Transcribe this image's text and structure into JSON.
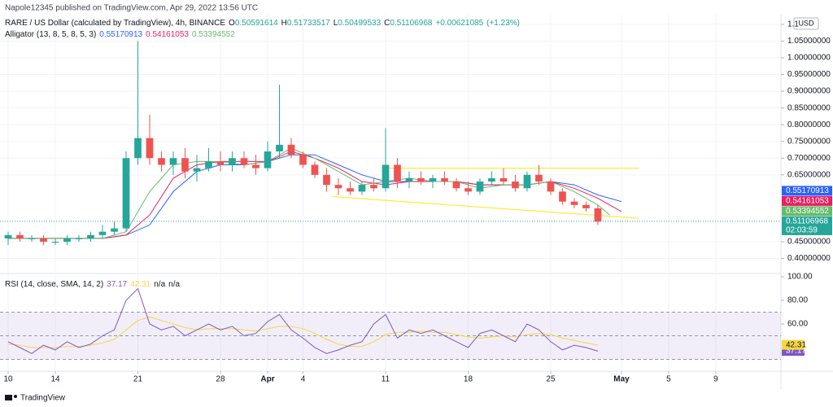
{
  "header": {
    "text": "Napole12345 published on TradingView.com, Apr 29, 2022 13:56 UTC"
  },
  "footer": {
    "text": "TradingView"
  },
  "chart_data": [
    {
      "type": "candlestick",
      "title": "RARE / US Dollar (calculated by TradingView), 4h, BINANCE",
      "ohlc_legend": [
        {
          "label": "O",
          "value": 0.50591614
        },
        {
          "label": "H",
          "value": 0.51733517
        },
        {
          "label": "L",
          "value": 0.50499533
        },
        {
          "label": "C",
          "value": 0.51106968
        }
      ],
      "change": "+0.00621085",
      "change_pct": "(+1.23%)",
      "currency": "USD",
      "grid": true,
      "up_color": "#26a69a",
      "down_color": "#ef5350",
      "x": [
        0,
        1,
        2,
        3,
        4,
        5,
        6,
        7,
        8,
        9,
        10,
        11,
        12,
        13,
        14,
        15,
        16,
        17,
        18,
        19,
        20,
        21,
        22,
        23,
        24,
        25,
        26,
        27,
        28,
        29,
        30,
        31,
        32,
        33,
        34,
        35,
        36,
        37,
        38,
        39,
        40,
        41,
        42,
        43,
        44,
        45,
        46,
        47,
        48,
        49,
        50
      ],
      "open": [
        0.46,
        0.47,
        0.46,
        0.46,
        0.45,
        0.45,
        0.46,
        0.46,
        0.47,
        0.48,
        0.49,
        0.7,
        0.76,
        0.7,
        0.68,
        0.7,
        0.66,
        0.67,
        0.69,
        0.68,
        0.7,
        0.68,
        0.67,
        0.72,
        0.74,
        0.71,
        0.68,
        0.65,
        0.62,
        0.61,
        0.6,
        0.62,
        0.61,
        0.68,
        0.63,
        0.64,
        0.63,
        0.64,
        0.63,
        0.61,
        0.6,
        0.63,
        0.64,
        0.63,
        0.61,
        0.65,
        0.63,
        0.6,
        0.57,
        0.56,
        0.55
      ],
      "high": [
        0.48,
        0.48,
        0.47,
        0.47,
        0.46,
        0.47,
        0.47,
        0.48,
        0.5,
        0.51,
        0.72,
        1.05,
        0.83,
        0.72,
        0.72,
        0.73,
        0.71,
        0.73,
        0.72,
        0.72,
        0.72,
        0.71,
        0.75,
        0.92,
        0.76,
        0.72,
        0.69,
        0.67,
        0.64,
        0.63,
        0.63,
        0.64,
        0.79,
        0.7,
        0.66,
        0.66,
        0.65,
        0.66,
        0.64,
        0.63,
        0.64,
        0.66,
        0.67,
        0.65,
        0.66,
        0.68,
        0.64,
        0.61,
        0.58,
        0.57,
        0.56
      ],
      "low": [
        0.44,
        0.45,
        0.45,
        0.44,
        0.44,
        0.44,
        0.45,
        0.45,
        0.46,
        0.47,
        0.48,
        0.68,
        0.68,
        0.66,
        0.65,
        0.64,
        0.63,
        0.66,
        0.66,
        0.66,
        0.67,
        0.65,
        0.66,
        0.7,
        0.7,
        0.67,
        0.64,
        0.6,
        0.59,
        0.59,
        0.59,
        0.6,
        0.6,
        0.61,
        0.61,
        0.62,
        0.61,
        0.62,
        0.6,
        0.59,
        0.59,
        0.62,
        0.62,
        0.6,
        0.6,
        0.62,
        0.59,
        0.56,
        0.55,
        0.54,
        0.5
      ],
      "close": [
        0.47,
        0.46,
        0.46,
        0.45,
        0.45,
        0.46,
        0.46,
        0.47,
        0.48,
        0.49,
        0.7,
        0.76,
        0.7,
        0.68,
        0.7,
        0.66,
        0.67,
        0.69,
        0.68,
        0.7,
        0.68,
        0.67,
        0.72,
        0.74,
        0.71,
        0.68,
        0.65,
        0.62,
        0.61,
        0.6,
        0.62,
        0.61,
        0.68,
        0.63,
        0.64,
        0.63,
        0.64,
        0.63,
        0.61,
        0.6,
        0.63,
        0.64,
        0.63,
        0.61,
        0.65,
        0.63,
        0.6,
        0.57,
        0.56,
        0.55,
        0.51
      ],
      "xlim": [
        -0.69,
        65.52
      ],
      "xticks": [
        {
          "value": 0,
          "label": "10"
        },
        {
          "value": 4,
          "label": "14"
        },
        {
          "value": 11,
          "label": "21"
        },
        {
          "value": 18,
          "label": "28"
        },
        {
          "value": 22,
          "label": "Apr"
        },
        {
          "value": 25,
          "label": "4"
        },
        {
          "value": 32,
          "label": "11"
        },
        {
          "value": 39,
          "label": "18"
        },
        {
          "value": 46,
          "label": "25"
        },
        {
          "value": 52,
          "label": "May"
        },
        {
          "value": 56,
          "label": "5"
        },
        {
          "value": 60,
          "label": "9"
        }
      ],
      "ylim": [
        0.3575,
        1.129
      ],
      "yticks": [
        {
          "value": 1.1,
          "label": "1.1"
        },
        {
          "value": 1.05,
          "label": "1.05000000"
        },
        {
          "value": 1.0,
          "label": "1.00000000"
        },
        {
          "value": 0.95,
          "label": "0.95000000"
        },
        {
          "value": 0.9,
          "label": "0.90000000"
        },
        {
          "value": 0.85,
          "label": "0.85000000"
        },
        {
          "value": 0.8,
          "label": "0.80000000"
        },
        {
          "value": 0.75,
          "label": "0.75000000"
        },
        {
          "value": 0.7,
          "label": "0.70000000"
        },
        {
          "value": 0.65,
          "label": "0.65000000"
        },
        {
          "value": 0.45,
          "label": "0.45000000"
        },
        {
          "value": 0.4,
          "label": "0.40000000"
        }
      ],
      "indicator": {
        "title": "Alligator (13, 8, 5, 8, 5, 3)",
        "series": [
          {
            "color": "#2962ff",
            "last": 0.55170913,
            "x": [
              0,
              2,
              4,
              6,
              8,
              10,
              12,
              14,
              16,
              18,
              20,
              22,
              24,
              26,
              28,
              30,
              32,
              34,
              36,
              38,
              40,
              42,
              44,
              46,
              48,
              50,
              52
            ],
            "values": [
              0.46,
              0.46,
              0.46,
              0.46,
              0.46,
              0.47,
              0.5,
              0.6,
              0.66,
              0.68,
              0.68,
              0.69,
              0.71,
              0.71,
              0.68,
              0.65,
              0.63,
              0.63,
              0.63,
              0.63,
              0.62,
              0.62,
              0.62,
              0.63,
              0.62,
              0.59,
              0.57
            ]
          },
          {
            "color": "#e91e63",
            "last": 0.54161053,
            "x": [
              0,
              2,
              4,
              6,
              8,
              10,
              12,
              14,
              16,
              18,
              20,
              22,
              24,
              26,
              28,
              30,
              32,
              34,
              36,
              38,
              40,
              42,
              44,
              46,
              48,
              50,
              52
            ],
            "values": [
              0.46,
              0.46,
              0.46,
              0.46,
              0.46,
              0.47,
              0.53,
              0.64,
              0.68,
              0.69,
              0.69,
              0.69,
              0.72,
              0.7,
              0.67,
              0.63,
              0.62,
              0.63,
              0.63,
              0.63,
              0.62,
              0.62,
              0.62,
              0.63,
              0.61,
              0.58,
              0.54
            ]
          },
          {
            "color": "#66bb6a",
            "last": 0.53394552,
            "x": [
              0,
              2,
              4,
              6,
              8,
              10,
              12,
              14,
              16,
              18,
              20,
              22,
              24,
              26,
              28,
              30,
              32,
              34,
              36,
              38,
              40,
              42,
              44,
              46,
              48,
              50,
              51
            ],
            "values": [
              0.46,
              0.46,
              0.46,
              0.46,
              0.46,
              0.48,
              0.6,
              0.68,
              0.69,
              0.69,
              0.68,
              0.69,
              0.73,
              0.7,
              0.66,
              0.62,
              0.63,
              0.64,
              0.63,
              0.63,
              0.61,
              0.62,
              0.62,
              0.63,
              0.6,
              0.56,
              0.53
            ]
          }
        ]
      },
      "trendlines": {
        "color": "#ffeb3b",
        "lines": [
          {
            "x": [
              32,
              53.5
            ],
            "values": [
              0.67,
              0.67
            ]
          },
          {
            "x": [
              27.5,
              53.5
            ],
            "values": [
              0.585,
              0.52
            ]
          }
        ]
      },
      "last_price": 0.51106968,
      "countdown": "02:03:59"
    },
    {
      "type": "line",
      "title": "RSI (14, close, SMA, 14, 2)",
      "extra_legend": [
        "n/a",
        "n/a"
      ],
      "x": [
        0,
        1,
        2,
        3,
        4,
        5,
        6,
        7,
        8,
        9,
        10,
        11,
        12,
        13,
        14,
        15,
        16,
        17,
        18,
        19,
        20,
        21,
        22,
        23,
        24,
        25,
        26,
        27,
        28,
        29,
        30,
        31,
        32,
        33,
        34,
        35,
        36,
        37,
        38,
        39,
        40,
        41,
        42,
        43,
        44,
        45,
        46,
        47,
        48,
        49,
        50
      ],
      "series": [
        {
          "color": "#7e57c2",
          "last": 37.17,
          "values": [
            45,
            40,
            35,
            42,
            38,
            45,
            40,
            43,
            50,
            55,
            80,
            90,
            60,
            55,
            58,
            50,
            55,
            60,
            55,
            58,
            50,
            52,
            62,
            68,
            55,
            48,
            40,
            35,
            38,
            42,
            45,
            60,
            68,
            48,
            55,
            52,
            55,
            50,
            45,
            40,
            52,
            55,
            50,
            45,
            60,
            55,
            45,
            38,
            42,
            40,
            37
          ]
        },
        {
          "color": "#f5d742",
          "last": 42.31,
          "values": [
            43,
            42,
            40,
            40,
            40,
            41,
            41,
            42,
            44,
            47,
            55,
            63,
            66,
            63,
            60,
            57,
            55,
            56,
            56,
            56,
            55,
            54,
            56,
            58,
            58,
            56,
            52,
            47,
            43,
            41,
            41,
            45,
            51,
            53,
            53,
            54,
            53,
            53,
            51,
            49,
            48,
            49,
            50,
            49,
            51,
            52,
            51,
            48,
            46,
            44,
            42
          ]
        }
      ],
      "bands": {
        "upper": 70,
        "middle": 50,
        "lower": 30,
        "fill": "#7e57c2"
      },
      "xlim": [
        -0.69,
        65.52
      ],
      "ylim": [
        20.69,
        102.07
      ],
      "yticks": [
        {
          "value": 100,
          "label": "100.00"
        },
        {
          "value": 80,
          "label": "80.00"
        },
        {
          "value": 60,
          "label": "60.00"
        }
      ]
    }
  ]
}
